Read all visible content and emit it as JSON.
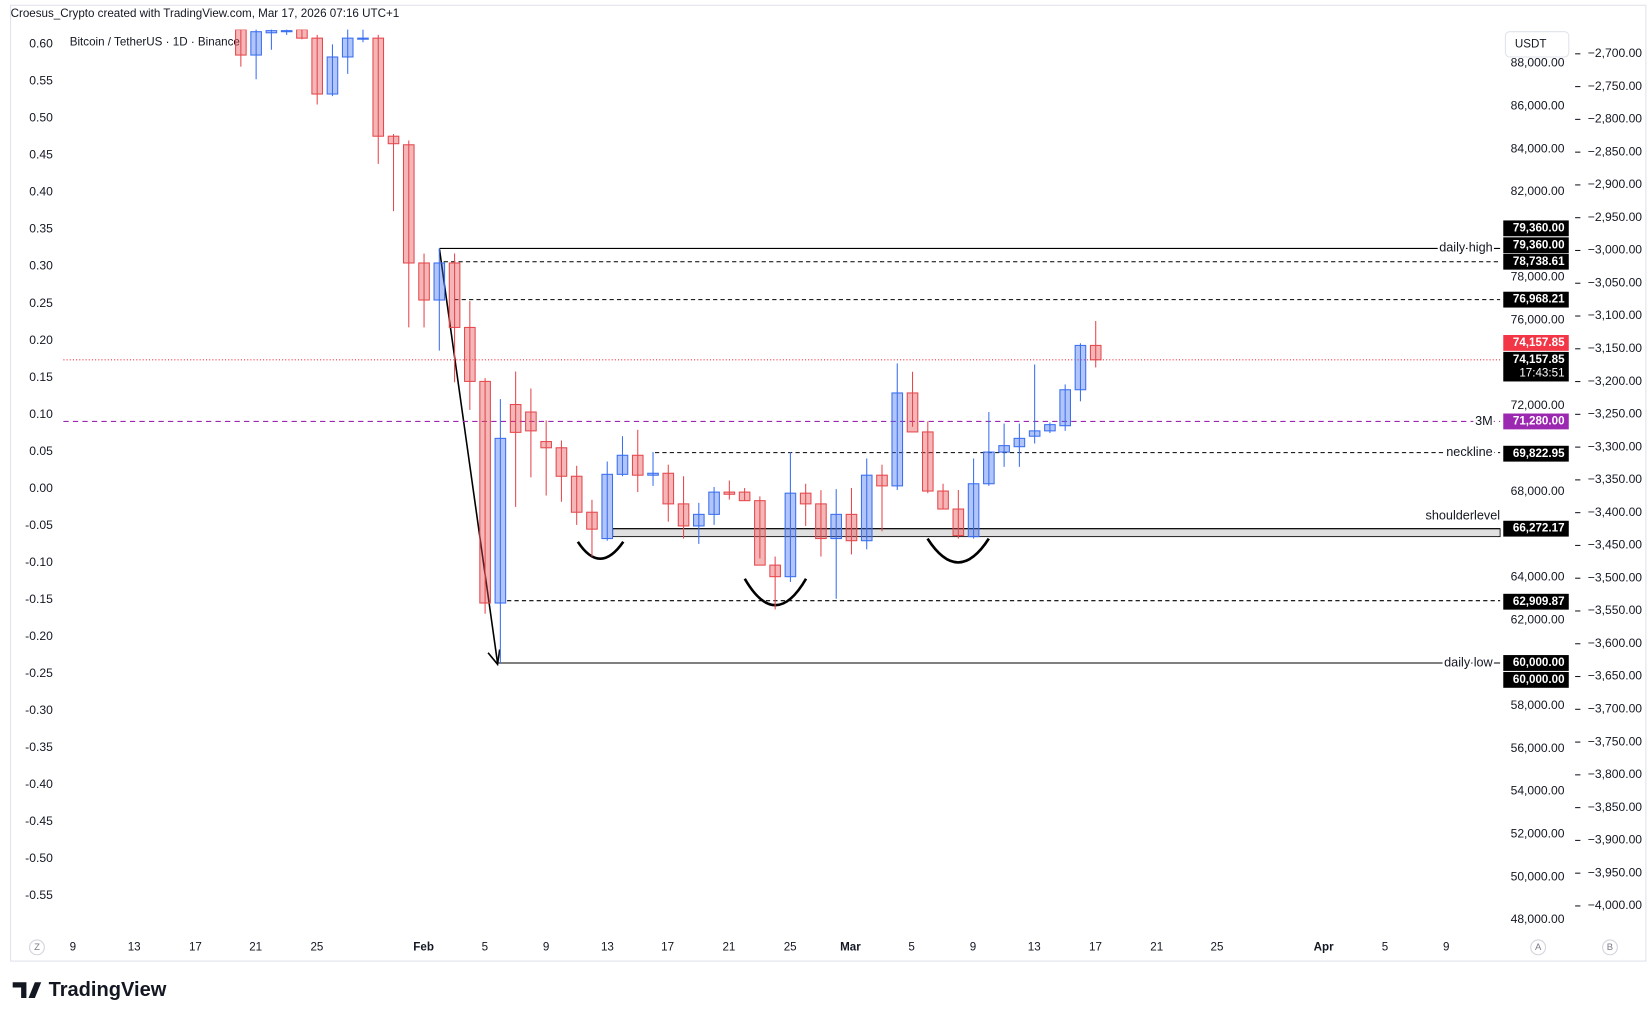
{
  "header": {
    "attribution": "Croesus_Crypto created with TradingView.com, Mar 17, 2026 07:16 UTC+1",
    "symbol": "Bitcoin / TetherUS · 1D · Binance",
    "currency": "USDT"
  },
  "footer": {
    "brand": "TradingView",
    "left_button": "Z",
    "right_buttons": [
      "A",
      "B"
    ]
  },
  "chart_data": {
    "type": "candlestick",
    "up_color": "#3b6ff0",
    "down_color": "#e5484d",
    "open": [
      89580,
      88390,
      89430,
      89480,
      89580,
      89180,
      86570,
      88300,
      89130,
      89180,
      84600,
      84200,
      78680,
      76950,
      78680,
      75670,
      73150,
      62800,
      72070,
      71720,
      70340,
      70050,
      68720,
      67040,
      65810,
      68810,
      69700,
      68770,
      68860,
      67430,
      66400,
      66940,
      67980,
      67980,
      67580,
      64570,
      64030,
      67930,
      67430,
      65810,
      66940,
      65710,
      68770,
      68270,
      72610,
      70790,
      68030,
      67190,
      65900,
      68370,
      69850,
      70100,
      70590,
      70840,
      71080,
      72760,
      74830
    ],
    "high": [
      89870,
      89730,
      89630,
      89730,
      89680,
      89330,
      88890,
      89730,
      89580,
      89330,
      84700,
      84400,
      79120,
      79360,
      79120,
      76900,
      73300,
      72320,
      73610,
      72820,
      71330,
      70390,
      69210,
      67620,
      69410,
      70590,
      70890,
      69850,
      69260,
      68720,
      67480,
      68220,
      68520,
      68170,
      67780,
      64970,
      69850,
      68370,
      68070,
      68120,
      68170,
      69550,
      69260,
      73990,
      73600,
      71280,
      68370,
      68080,
      69550,
      71720,
      71180,
      71180,
      73940,
      71230,
      73010,
      74930,
      75970
    ],
    "low": [
      87850,
      87260,
      88640,
      89330,
      89130,
      86080,
      86470,
      87510,
      88990,
      83310,
      81100,
      75670,
      75670,
      74590,
      73110,
      71820,
      62300,
      60000,
      67290,
      68670,
      67820,
      67530,
      66450,
      64970,
      65710,
      68720,
      67980,
      68270,
      66600,
      65810,
      65560,
      66450,
      67630,
      67580,
      64880,
      62500,
      63780,
      66400,
      64970,
      63000,
      65070,
      65310,
      66150,
      68080,
      71030,
      67930,
      67180,
      65810,
      65810,
      68270,
      69160,
      69160,
      70250,
      70740,
      70840,
      72220,
      73800
    ],
    "close": [
      88390,
      89480,
      89530,
      89530,
      89180,
      86570,
      88300,
      89180,
      89180,
      84600,
      84250,
      78680,
      76950,
      78680,
      75670,
      73150,
      62800,
      70490,
      70770,
      70840,
      70050,
      68720,
      67040,
      66250,
      68810,
      69700,
      68770,
      68860,
      67430,
      66400,
      66940,
      67980,
      67880,
      67580,
      64570,
      64030,
      67930,
      67430,
      65810,
      66940,
      65710,
      68770,
      68270,
      72610,
      70790,
      68030,
      67190,
      65950,
      68370,
      69850,
      70150,
      70490,
      70840,
      71130,
      72760,
      74830,
      74157.85
    ],
    "ylim": [
      47460,
      89580
    ],
    "yticks": [
      {
        "value": 88000,
        "label": "88,000.00"
      },
      {
        "value": 86000,
        "label": "86,000.00"
      },
      {
        "value": 84000,
        "label": "84,000.00"
      },
      {
        "value": 82000,
        "label": "82,000.00"
      },
      {
        "value": 78000,
        "label": "78,000.00"
      },
      {
        "value": 76000,
        "label": "76,000.00"
      },
      {
        "value": 72000,
        "label": "72,000.00"
      },
      {
        "value": 68000,
        "label": "68,000.00"
      },
      {
        "value": 64000,
        "label": "64,000.00"
      },
      {
        "value": 62000,
        "label": "62,000.00"
      },
      {
        "value": 58000,
        "label": "58,000.00"
      },
      {
        "value": 56000,
        "label": "56,000.00"
      },
      {
        "value": 54000,
        "label": "54,000.00"
      },
      {
        "value": 52000,
        "label": "52,000.00"
      },
      {
        "value": 50000,
        "label": "50,000.00"
      },
      {
        "value": 48000,
        "label": "48,000.00"
      }
    ],
    "y2lim": [
      -0.598,
      0.62
    ],
    "y2ticks": [
      {
        "value": 0.6,
        "label": "0.60"
      },
      {
        "value": 0.55,
        "label": "0.55"
      },
      {
        "value": 0.5,
        "label": "0.50"
      },
      {
        "value": 0.45,
        "label": "0.45"
      },
      {
        "value": 0.4,
        "label": "0.40"
      },
      {
        "value": 0.35,
        "label": "0.35"
      },
      {
        "value": 0.3,
        "label": "0.30"
      },
      {
        "value": 0.25,
        "label": "0.25"
      },
      {
        "value": 0.2,
        "label": "0.20"
      },
      {
        "value": 0.15,
        "label": "0.15"
      },
      {
        "value": 0.1,
        "label": "0.10"
      },
      {
        "value": 0.05,
        "label": "0.05"
      },
      {
        "value": 0,
        "label": "0.00"
      },
      {
        "value": -0.05,
        "label": "-0.05"
      },
      {
        "value": -0.1,
        "label": "-0.10"
      },
      {
        "value": -0.15,
        "label": "-0.15"
      },
      {
        "value": -0.2,
        "label": "-0.20"
      },
      {
        "value": -0.25,
        "label": "-0.25"
      },
      {
        "value": -0.3,
        "label": "-0.30"
      },
      {
        "value": -0.35,
        "label": "-0.35"
      },
      {
        "value": -0.4,
        "label": "-0.40"
      },
      {
        "value": -0.45,
        "label": "-0.45"
      },
      {
        "value": -0.5,
        "label": "-0.50"
      },
      {
        "value": -0.55,
        "label": "-0.55"
      }
    ],
    "y3lim": [
      -4039,
      -2663
    ],
    "y3ticks": [
      {
        "value": -2700,
        "label": "−2,700.00"
      },
      {
        "value": -2750,
        "label": "−2,750.00"
      },
      {
        "value": -2800,
        "label": "−2,800.00"
      },
      {
        "value": -2850,
        "label": "−2,850.00"
      },
      {
        "value": -2900,
        "label": "−2,900.00"
      },
      {
        "value": -2950,
        "label": "−2,950.00"
      },
      {
        "value": -3000,
        "label": "−3,000.00"
      },
      {
        "value": -3050,
        "label": "−3,050.00"
      },
      {
        "value": -3100,
        "label": "−3,100.00"
      },
      {
        "value": -3150,
        "label": "−3,150.00"
      },
      {
        "value": -3200,
        "label": "−3,200.00"
      },
      {
        "value": -3250,
        "label": "−3,250.00"
      },
      {
        "value": -3300,
        "label": "−3,300.00"
      },
      {
        "value": -3350,
        "label": "−3,350.00"
      },
      {
        "value": -3400,
        "label": "−3,400.00"
      },
      {
        "value": -3450,
        "label": "−3,450.00"
      },
      {
        "value": -3500,
        "label": "−3,500.00"
      },
      {
        "value": -3550,
        "label": "−3,550.00"
      },
      {
        "value": -3600,
        "label": "−3,600.00"
      },
      {
        "value": -3650,
        "label": "−3,650.00"
      },
      {
        "value": -3700,
        "label": "−3,700.00"
      },
      {
        "value": -3750,
        "label": "−3,750.00"
      },
      {
        "value": -3800,
        "label": "−3,800.00"
      },
      {
        "value": -3850,
        "label": "−3,850.00"
      },
      {
        "value": -3900,
        "label": "−3,900.00"
      },
      {
        "value": -3950,
        "label": "−3,950.00"
      },
      {
        "value": -4000,
        "label": "−4,000.00"
      }
    ],
    "categories": [
      "9",
      "13",
      "17",
      "21",
      "25",
      "Feb",
      "5",
      "9",
      "13",
      "17",
      "21",
      "25",
      "Mar",
      "5",
      "9",
      "13",
      "17",
      "21",
      "25",
      "Apr",
      "5",
      "9"
    ],
    "levels": [
      {
        "name": "daily high",
        "value": 79360,
        "label": "79,360.00",
        "color": "#000000"
      },
      {
        "value": 78738.61,
        "label": "78,738.61",
        "color": "#000000"
      },
      {
        "value": 76968.21,
        "label": "76,968.21",
        "color": "#000000"
      },
      {
        "value": 74157.85,
        "label": "74,157.85",
        "countdown": "17:43:51",
        "color": "#f23645"
      },
      {
        "name": "3M",
        "value": 71280,
        "label": "71,280.00",
        "color": "#9c27b0"
      },
      {
        "name": "neckline",
        "value": 69822.95,
        "label": "69,822.95",
        "color": "#000000"
      },
      {
        "name": "shoulderlevel",
        "value": 66272.17,
        "low": 65900,
        "label": "66,272.17",
        "color": "#000000"
      },
      {
        "value": 62909.87,
        "label": "62,909.87",
        "color": "#000000"
      },
      {
        "name": "daily low",
        "value": 60000,
        "label": "60,000.00",
        "color": "#000000"
      }
    ]
  }
}
